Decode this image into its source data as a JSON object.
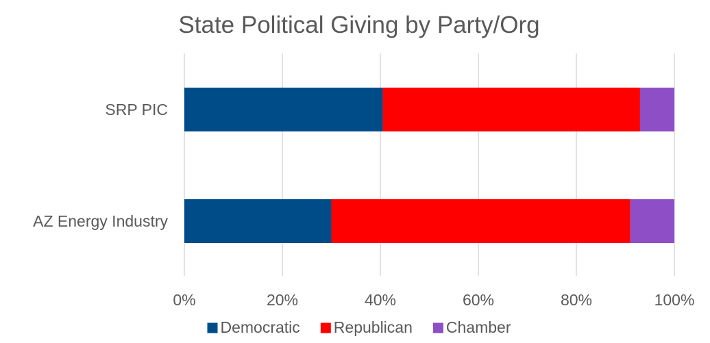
{
  "chart_data": {
    "type": "bar",
    "orientation": "horizontal",
    "stacking": "percent",
    "title": "State Political Giving by Party/Org",
    "xlabel": "",
    "ylabel": "",
    "xlim": [
      0,
      100
    ],
    "x_ticks": [
      0,
      20,
      40,
      60,
      80,
      100
    ],
    "x_tick_labels": [
      "0%",
      "20%",
      "40%",
      "60%",
      "80%",
      "100%"
    ],
    "categories": [
      "SRP PIC",
      "AZ Energy Industry"
    ],
    "series": [
      {
        "name": "Democratic",
        "color": "#004c88",
        "values": [
          40.5,
          30
        ]
      },
      {
        "name": "Republican",
        "color": "#ff0000",
        "values": [
          52.5,
          61
        ]
      },
      {
        "name": "Chamber",
        "color": "#8e4ec6",
        "values": [
          7,
          9
        ]
      }
    ],
    "grid": true,
    "legend": "bottom"
  }
}
